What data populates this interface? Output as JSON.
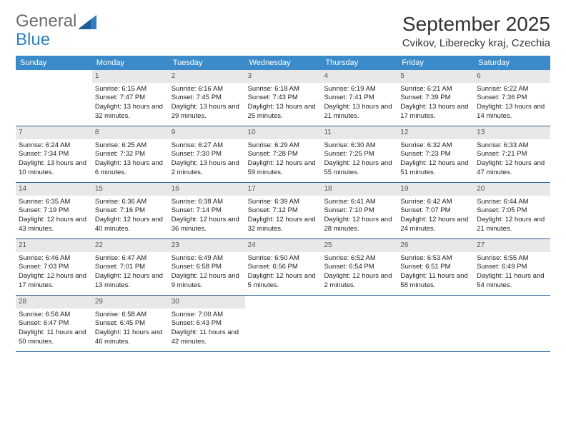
{
  "logo": {
    "line1": "General",
    "line2": "Blue"
  },
  "title": "September 2025",
  "location": "Cvikov, Liberecky kraj, Czechia",
  "colors": {
    "header_bg": "#3b8bca",
    "header_text": "#ffffff",
    "daynum_bg": "#e8e8e8",
    "week_border": "#2a5f8e",
    "body_text": "#222222"
  },
  "day_names": [
    "Sunday",
    "Monday",
    "Tuesday",
    "Wednesday",
    "Thursday",
    "Friday",
    "Saturday"
  ],
  "weeks": [
    [
      {
        "n": "",
        "lines": []
      },
      {
        "n": "1",
        "lines": [
          "Sunrise: 6:15 AM",
          "Sunset: 7:47 PM",
          "Daylight: 13 hours and 32 minutes."
        ]
      },
      {
        "n": "2",
        "lines": [
          "Sunrise: 6:16 AM",
          "Sunset: 7:45 PM",
          "Daylight: 13 hours and 29 minutes."
        ]
      },
      {
        "n": "3",
        "lines": [
          "Sunrise: 6:18 AM",
          "Sunset: 7:43 PM",
          "Daylight: 13 hours and 25 minutes."
        ]
      },
      {
        "n": "4",
        "lines": [
          "Sunrise: 6:19 AM",
          "Sunset: 7:41 PM",
          "Daylight: 13 hours and 21 minutes."
        ]
      },
      {
        "n": "5",
        "lines": [
          "Sunrise: 6:21 AM",
          "Sunset: 7:39 PM",
          "Daylight: 13 hours and 17 minutes."
        ]
      },
      {
        "n": "6",
        "lines": [
          "Sunrise: 6:22 AM",
          "Sunset: 7:36 PM",
          "Daylight: 13 hours and 14 minutes."
        ]
      }
    ],
    [
      {
        "n": "7",
        "lines": [
          "Sunrise: 6:24 AM",
          "Sunset: 7:34 PM",
          "Daylight: 13 hours and 10 minutes."
        ]
      },
      {
        "n": "8",
        "lines": [
          "Sunrise: 6:25 AM",
          "Sunset: 7:32 PM",
          "Daylight: 13 hours and 6 minutes."
        ]
      },
      {
        "n": "9",
        "lines": [
          "Sunrise: 6:27 AM",
          "Sunset: 7:30 PM",
          "Daylight: 13 hours and 2 minutes."
        ]
      },
      {
        "n": "10",
        "lines": [
          "Sunrise: 6:29 AM",
          "Sunset: 7:28 PM",
          "Daylight: 12 hours and 59 minutes."
        ]
      },
      {
        "n": "11",
        "lines": [
          "Sunrise: 6:30 AM",
          "Sunset: 7:25 PM",
          "Daylight: 12 hours and 55 minutes."
        ]
      },
      {
        "n": "12",
        "lines": [
          "Sunrise: 6:32 AM",
          "Sunset: 7:23 PM",
          "Daylight: 12 hours and 51 minutes."
        ]
      },
      {
        "n": "13",
        "lines": [
          "Sunrise: 6:33 AM",
          "Sunset: 7:21 PM",
          "Daylight: 12 hours and 47 minutes."
        ]
      }
    ],
    [
      {
        "n": "14",
        "lines": [
          "Sunrise: 6:35 AM",
          "Sunset: 7:19 PM",
          "Daylight: 12 hours and 43 minutes."
        ]
      },
      {
        "n": "15",
        "lines": [
          "Sunrise: 6:36 AM",
          "Sunset: 7:16 PM",
          "Daylight: 12 hours and 40 minutes."
        ]
      },
      {
        "n": "16",
        "lines": [
          "Sunrise: 6:38 AM",
          "Sunset: 7:14 PM",
          "Daylight: 12 hours and 36 minutes."
        ]
      },
      {
        "n": "17",
        "lines": [
          "Sunrise: 6:39 AM",
          "Sunset: 7:12 PM",
          "Daylight: 12 hours and 32 minutes."
        ]
      },
      {
        "n": "18",
        "lines": [
          "Sunrise: 6:41 AM",
          "Sunset: 7:10 PM",
          "Daylight: 12 hours and 28 minutes."
        ]
      },
      {
        "n": "19",
        "lines": [
          "Sunrise: 6:42 AM",
          "Sunset: 7:07 PM",
          "Daylight: 12 hours and 24 minutes."
        ]
      },
      {
        "n": "20",
        "lines": [
          "Sunrise: 6:44 AM",
          "Sunset: 7:05 PM",
          "Daylight: 12 hours and 21 minutes."
        ]
      }
    ],
    [
      {
        "n": "21",
        "lines": [
          "Sunrise: 6:46 AM",
          "Sunset: 7:03 PM",
          "Daylight: 12 hours and 17 minutes."
        ]
      },
      {
        "n": "22",
        "lines": [
          "Sunrise: 6:47 AM",
          "Sunset: 7:01 PM",
          "Daylight: 12 hours and 13 minutes."
        ]
      },
      {
        "n": "23",
        "lines": [
          "Sunrise: 6:49 AM",
          "Sunset: 6:58 PM",
          "Daylight: 12 hours and 9 minutes."
        ]
      },
      {
        "n": "24",
        "lines": [
          "Sunrise: 6:50 AM",
          "Sunset: 6:56 PM",
          "Daylight: 12 hours and 5 minutes."
        ]
      },
      {
        "n": "25",
        "lines": [
          "Sunrise: 6:52 AM",
          "Sunset: 6:54 PM",
          "Daylight: 12 hours and 2 minutes."
        ]
      },
      {
        "n": "26",
        "lines": [
          "Sunrise: 6:53 AM",
          "Sunset: 6:51 PM",
          "Daylight: 11 hours and 58 minutes."
        ]
      },
      {
        "n": "27",
        "lines": [
          "Sunrise: 6:55 AM",
          "Sunset: 6:49 PM",
          "Daylight: 11 hours and 54 minutes."
        ]
      }
    ],
    [
      {
        "n": "28",
        "lines": [
          "Sunrise: 6:56 AM",
          "Sunset: 6:47 PM",
          "Daylight: 11 hours and 50 minutes."
        ]
      },
      {
        "n": "29",
        "lines": [
          "Sunrise: 6:58 AM",
          "Sunset: 6:45 PM",
          "Daylight: 11 hours and 46 minutes."
        ]
      },
      {
        "n": "30",
        "lines": [
          "Sunrise: 7:00 AM",
          "Sunset: 6:43 PM",
          "Daylight: 11 hours and 42 minutes."
        ]
      },
      {
        "n": "",
        "lines": []
      },
      {
        "n": "",
        "lines": []
      },
      {
        "n": "",
        "lines": []
      },
      {
        "n": "",
        "lines": []
      }
    ]
  ]
}
